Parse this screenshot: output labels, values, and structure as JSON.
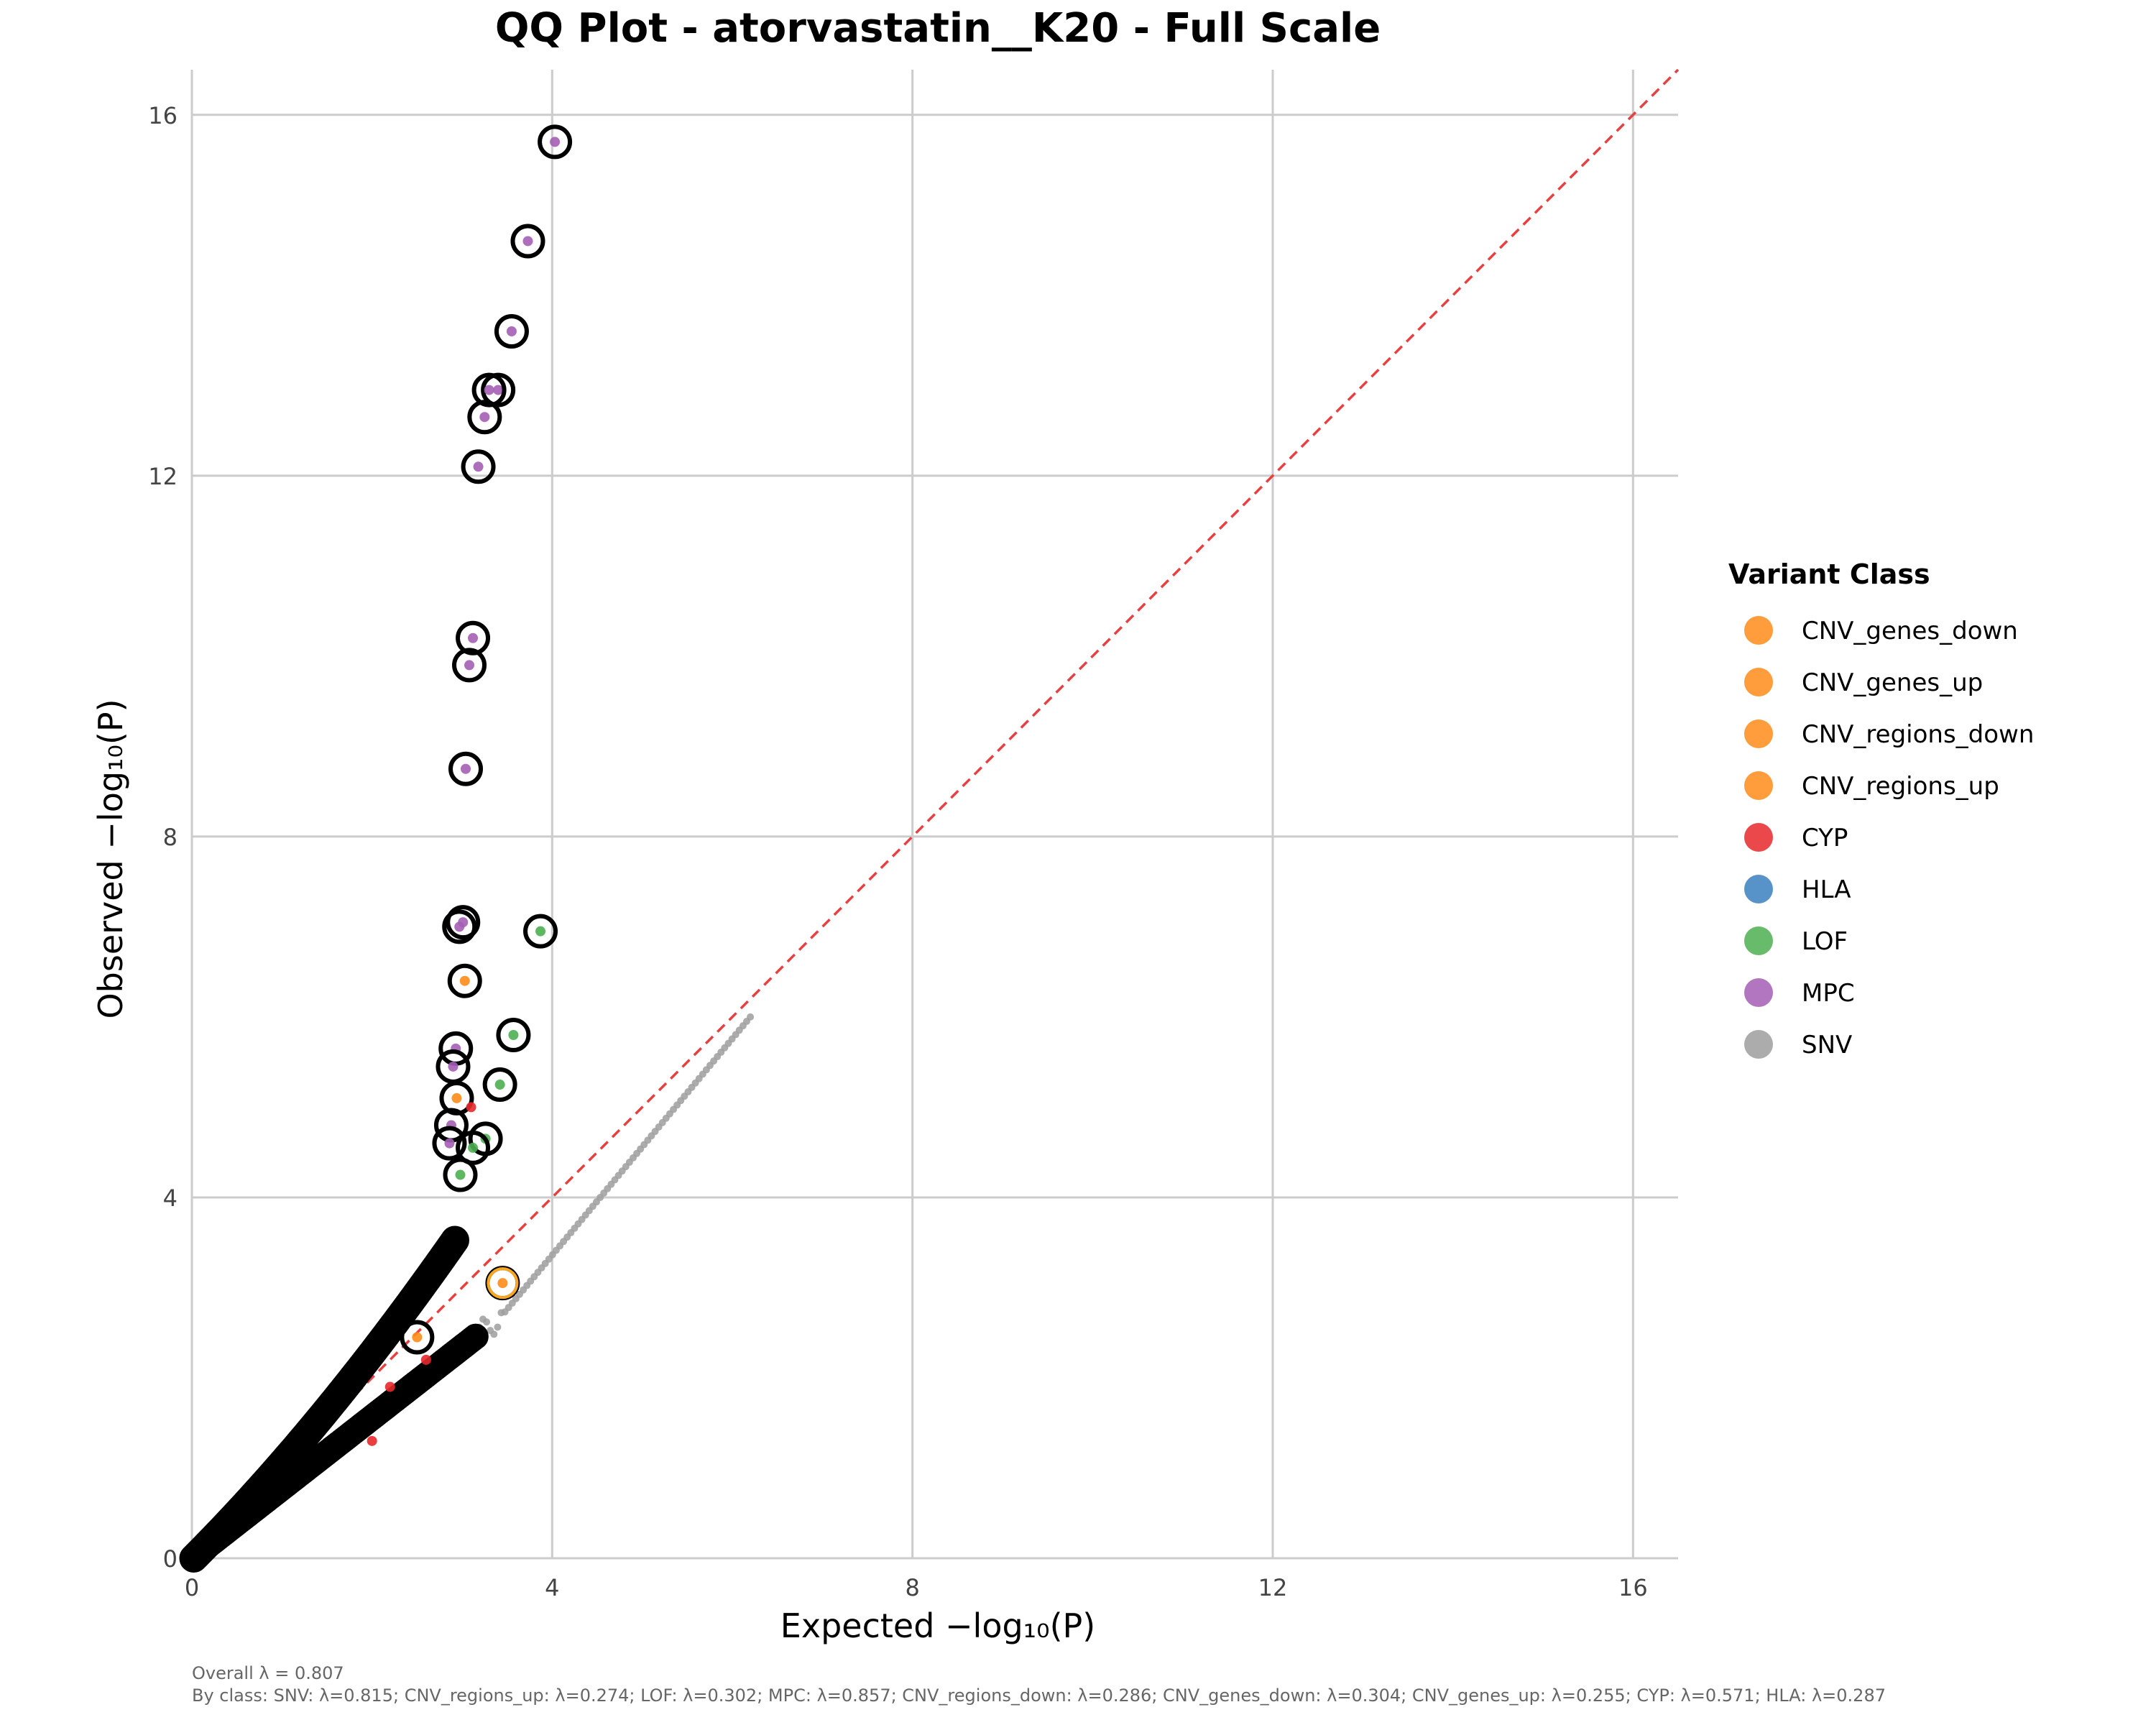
{
  "chart_data": {
    "type": "scatter",
    "title": "QQ Plot - atorvastatin__K20 - Full Scale",
    "xlabel": "Expected −log₁₀(P)",
    "ylabel": "Observed −log₁₀(P)",
    "xlim": [
      0,
      16.5
    ],
    "ylim": [
      0,
      16.5
    ],
    "x_ticks": [
      0,
      4,
      8,
      12,
      16
    ],
    "y_ticks": [
      0,
      4,
      8,
      12,
      16
    ],
    "grid": true,
    "reference_line": {
      "type": "identity",
      "style": "dashed",
      "color": "#e84040"
    },
    "legend": {
      "title": "Variant Class",
      "position": "right",
      "entries": [
        {
          "label": "CNV_genes_down",
          "color": "#ff8c1a"
        },
        {
          "label": "CNV_genes_up",
          "color": "#ff8c1a"
        },
        {
          "label": "CNV_regions_down",
          "color": "#ff8c1a"
        },
        {
          "label": "CNV_regions_up",
          "color": "#ff8c1a"
        },
        {
          "label": "CYP",
          "color": "#e8282b"
        },
        {
          "label": "HLA",
          "color": "#3a7fbf"
        },
        {
          "label": "LOF",
          "color": "#4caf50"
        },
        {
          "label": "MPC",
          "color": "#a45eb5"
        },
        {
          "label": "SNV",
          "color": "#9e9e9e"
        }
      ]
    },
    "series": [
      {
        "name": "MPC",
        "color": "#a45eb5",
        "highlighted": true,
        "points": [
          [
            4.03,
            15.7
          ],
          [
            3.73,
            14.6
          ],
          [
            3.55,
            13.6
          ],
          [
            3.4,
            12.95
          ],
          [
            3.3,
            12.95
          ],
          [
            3.25,
            12.65
          ],
          [
            3.18,
            12.1
          ],
          [
            3.12,
            10.2
          ],
          [
            3.08,
            9.9
          ],
          [
            3.04,
            8.75
          ],
          [
            3.01,
            7.05
          ],
          [
            2.97,
            7.0
          ],
          [
            2.93,
            5.65
          ],
          [
            2.9,
            5.45
          ],
          [
            2.88,
            4.8
          ],
          [
            2.86,
            4.6
          ]
        ]
      },
      {
        "name": "LOF",
        "color": "#4caf50",
        "highlighted": true,
        "points": [
          [
            3.87,
            6.95
          ],
          [
            3.57,
            5.8
          ],
          [
            3.42,
            5.25
          ],
          [
            3.26,
            4.65
          ],
          [
            3.12,
            4.55
          ],
          [
            2.98,
            4.25
          ]
        ]
      },
      {
        "name": "CNV_genes_down",
        "color": "#ff8c1a",
        "highlighted": true,
        "points": [
          [
            3.03,
            6.4
          ],
          [
            2.94,
            5.1
          ],
          [
            3.45,
            3.05
          ],
          [
            2.5,
            2.45
          ]
        ]
      },
      {
        "name": "CYP",
        "color": "#e8282b",
        "highlighted": false,
        "points": [
          [
            3.1,
            5.0
          ],
          [
            2.6,
            2.2
          ],
          [
            2.2,
            1.9
          ],
          [
            2.0,
            1.3
          ]
        ]
      },
      {
        "name": "SNV",
        "color": "#9e9e9e",
        "highlighted": false,
        "points_range": {
          "x": [
            0,
            6.2
          ],
          "y": [
            0,
            6.0
          ]
        }
      }
    ]
  },
  "footer": {
    "overall": "Overall λ = 0.807",
    "by_class": "By class: SNV: λ=0.815; CNV_regions_up: λ=0.274; LOF: λ=0.302; MPC: λ=0.857; CNV_regions_down: λ=0.286; CNV_genes_down: λ=0.304; CNV_genes_up: λ=0.255; CYP: λ=0.571; HLA: λ=0.287"
  }
}
